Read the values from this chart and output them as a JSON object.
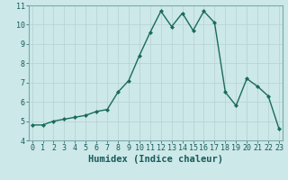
{
  "title": "",
  "xlabel": "Humidex (Indice chaleur)",
  "ylabel": "",
  "x_values": [
    0,
    1,
    2,
    3,
    4,
    5,
    6,
    7,
    8,
    9,
    10,
    11,
    12,
    13,
    14,
    15,
    16,
    17,
    18,
    19,
    20,
    21,
    22,
    23
  ],
  "y_values": [
    4.8,
    4.8,
    5.0,
    5.1,
    5.2,
    5.3,
    5.5,
    5.6,
    6.5,
    7.1,
    8.4,
    9.6,
    10.7,
    9.9,
    10.6,
    9.7,
    10.7,
    10.1,
    6.5,
    5.8,
    7.2,
    6.8,
    6.3,
    4.6
  ],
  "line_color": "#1a6b5a",
  "marker": "D",
  "marker_size": 2.0,
  "line_width": 1.0,
  "bg_color": "#cce8e8",
  "grid_color_major": "#b8d0d0",
  "grid_color_minor": "#c8e0e0",
  "tick_label_fontsize": 6.0,
  "xlabel_fontsize": 7.5,
  "ylim": [
    4,
    11
  ],
  "yticks": [
    4,
    5,
    6,
    7,
    8,
    9,
    10,
    11
  ],
  "xticks": [
    0,
    1,
    2,
    3,
    4,
    5,
    6,
    7,
    8,
    9,
    10,
    11,
    12,
    13,
    14,
    15,
    16,
    17,
    18,
    19,
    20,
    21,
    22,
    23
  ],
  "xlim": [
    -0.3,
    23.3
  ]
}
